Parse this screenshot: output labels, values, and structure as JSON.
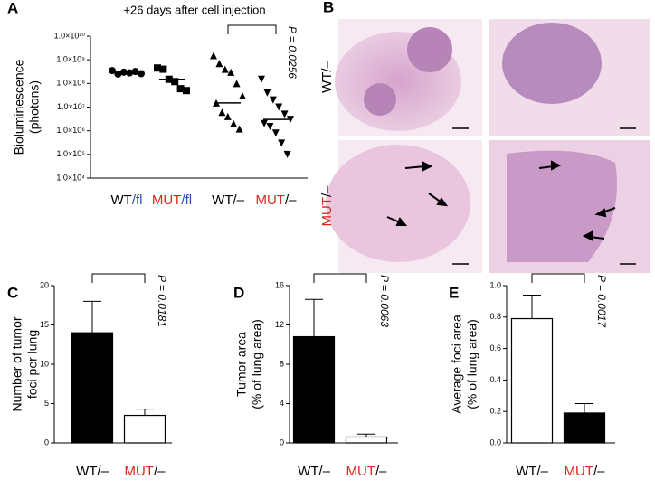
{
  "chart_data": [
    {
      "type": "scatter",
      "panel": "A",
      "title": "+26 days after cell injection",
      "ylabel": [
        "Bioluminescence",
        "(photons)"
      ],
      "categories": [
        "WT/fl",
        "MUT/fl",
        "WT/–",
        "MUT/–"
      ],
      "category_colors": [
        [
          "#000000",
          "#2a4fb0"
        ],
        [
          "#d8281e",
          "#2a4fb0"
        ],
        [
          "#000000",
          "#000000"
        ],
        [
          "#d8281e",
          "#000000"
        ]
      ],
      "markers": [
        "circle",
        "square",
        "triangle-up",
        "triangle-down"
      ],
      "values": [
        [
          350000000,
          250000000,
          300000000,
          280000000,
          320000000,
          260000000
        ],
        [
          450000000,
          400000000,
          150000000,
          120000000,
          60000000,
          50000000
        ],
        [
          1500000000,
          700000000,
          400000000,
          300000000,
          100000000,
          30000000,
          15000000,
          6000000,
          4000000,
          2000000,
          1200000
        ],
        [
          150000000,
          40000000,
          20000000,
          10000000,
          5000000,
          3000000,
          2000000,
          1500000,
          800000,
          300000,
          100000
        ]
      ],
      "medians": [
        300000000,
        150000000,
        15000000,
        3000000
      ],
      "log_y": true,
      "ylim": [
        10000,
        10000000000
      ],
      "yticks": [
        {
          "value": 10000,
          "label": "1.0×10⁴"
        },
        {
          "value": 100000,
          "label": "1.0×10⁵"
        },
        {
          "value": 1000000,
          "label": "1.0×10⁶"
        },
        {
          "value": 10000000,
          "label": "1.0×10⁷"
        },
        {
          "value": 100000000,
          "label": "1.0×10⁸"
        },
        {
          "value": 1000000000,
          "label": "1.0×10⁹"
        },
        {
          "value": 10000000000,
          "label": "1.0×10¹⁰"
        }
      ],
      "annotation": "P = 0.0256"
    },
    {
      "type": "bar",
      "panel": "C",
      "ylabel": [
        "Number of tumor",
        "foci per lung"
      ],
      "categories": [
        "WT/–",
        "MUT/–"
      ],
      "category_colors": [
        [
          "#000000",
          "#000000"
        ],
        [
          "#d8281e",
          "#000000"
        ]
      ],
      "values": [
        14,
        3.5
      ],
      "errors": [
        4,
        0.8
      ],
      "colors": [
        "#000000",
        "#ffffff"
      ],
      "ylim": [
        0,
        20
      ],
      "yticks": [
        0,
        5,
        10,
        15,
        20
      ],
      "annotation": "P = 0.0181"
    },
    {
      "type": "bar",
      "panel": "D",
      "ylabel": [
        "Tumor area",
        "(% of lung area)"
      ],
      "categories": [
        "WT/–",
        "MUT/–"
      ],
      "category_colors": [
        [
          "#000000",
          "#000000"
        ],
        [
          "#d8281e",
          "#000000"
        ]
      ],
      "values": [
        10.8,
        0.6
      ],
      "errors": [
        3.8,
        0.3
      ],
      "colors": [
        "#000000",
        "#ffffff"
      ],
      "ylim": [
        0,
        16
      ],
      "yticks": [
        0,
        4,
        8,
        12,
        16
      ],
      "annotation": "P = 0.0063"
    },
    {
      "type": "bar",
      "panel": "E",
      "ylabel": [
        "Average foci area",
        "(% of lung area)"
      ],
      "categories": [
        "WT/–",
        "MUT/–"
      ],
      "category_colors": [
        [
          "#000000",
          "#000000"
        ],
        [
          "#d8281e",
          "#000000"
        ]
      ],
      "values": [
        0.79,
        0.19
      ],
      "errors": [
        0.15,
        0.06
      ],
      "colors": [
        "#ffffff",
        "#000000"
      ],
      "ylim": [
        0,
        1
      ],
      "yticks": [
        {
          "value": 0,
          "label": "0.0"
        },
        0.2,
        0.4,
        0.6,
        0.8,
        {
          "value": 1,
          "label": "1.0"
        }
      ],
      "annotation": "P = 0.0017"
    }
  ],
  "histology": {
    "panel": "B",
    "rows": [
      "WT/–",
      "MUT/–"
    ],
    "row_colors": [
      [
        "#000000",
        "#000000"
      ],
      [
        "#d8281e",
        "#000000"
      ]
    ]
  }
}
